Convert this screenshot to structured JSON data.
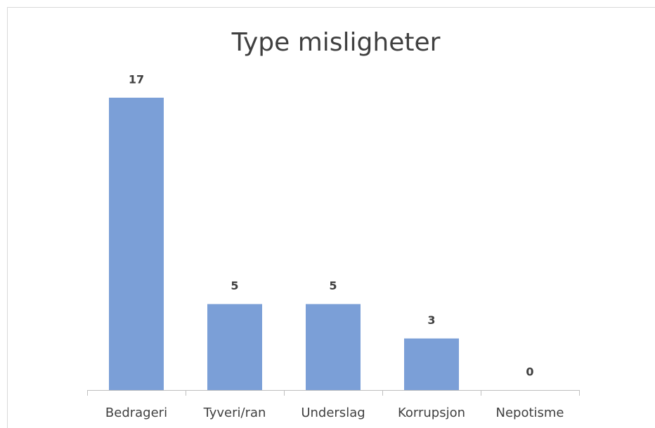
{
  "chart_data": {
    "type": "bar",
    "title": "Type misligheter",
    "categories": [
      "Bedrageri",
      "Tyveri/ran",
      "Underslag",
      "Korrupsjon",
      "Nepotisme"
    ],
    "values": [
      17,
      5,
      5,
      3,
      0
    ],
    "color": "#7b9fd7"
  }
}
